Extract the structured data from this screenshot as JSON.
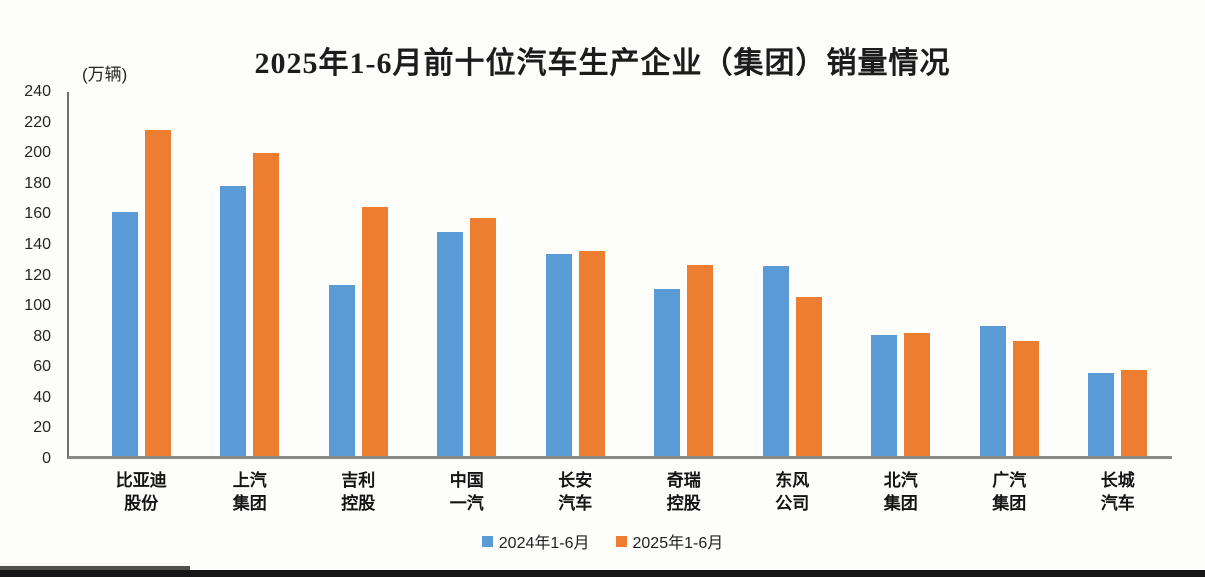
{
  "chart_data": {
    "type": "bar",
    "title": "2025年1-6月前十位汽车生产企业（集团）销量情况",
    "unit_label": "(万辆)",
    "categories": [
      "比亚迪\n股份",
      "上汽\n集团",
      "吉利\n控股",
      "中国\n一汽",
      "长安\n汽车",
      "奇瑞\n控股",
      "东风\n公司",
      "北汽\n集团",
      "广汽\n集团",
      "长城\n汽车"
    ],
    "series": [
      {
        "name": "2024年1-6月",
        "color": "#5B9BD5",
        "values": [
          161,
          178,
          113,
          148,
          133,
          110,
          125,
          80,
          86,
          55
        ]
      },
      {
        "name": "2025年1-6月",
        "color": "#ED7D31",
        "values": [
          215,
          200,
          164,
          157,
          135,
          126,
          105,
          81,
          76,
          57
        ]
      }
    ],
    "ylim": [
      0,
      240
    ],
    "yticks": [
      0,
      20,
      40,
      60,
      80,
      100,
      120,
      140,
      160,
      180,
      200,
      220,
      240
    ],
    "grid": false,
    "legend_position": "bottom"
  },
  "colors": {
    "series_2024": "#5B9BD5",
    "series_2025": "#ED7D31",
    "axis": "#8a8a8a",
    "text": "#1c1c1c"
  }
}
